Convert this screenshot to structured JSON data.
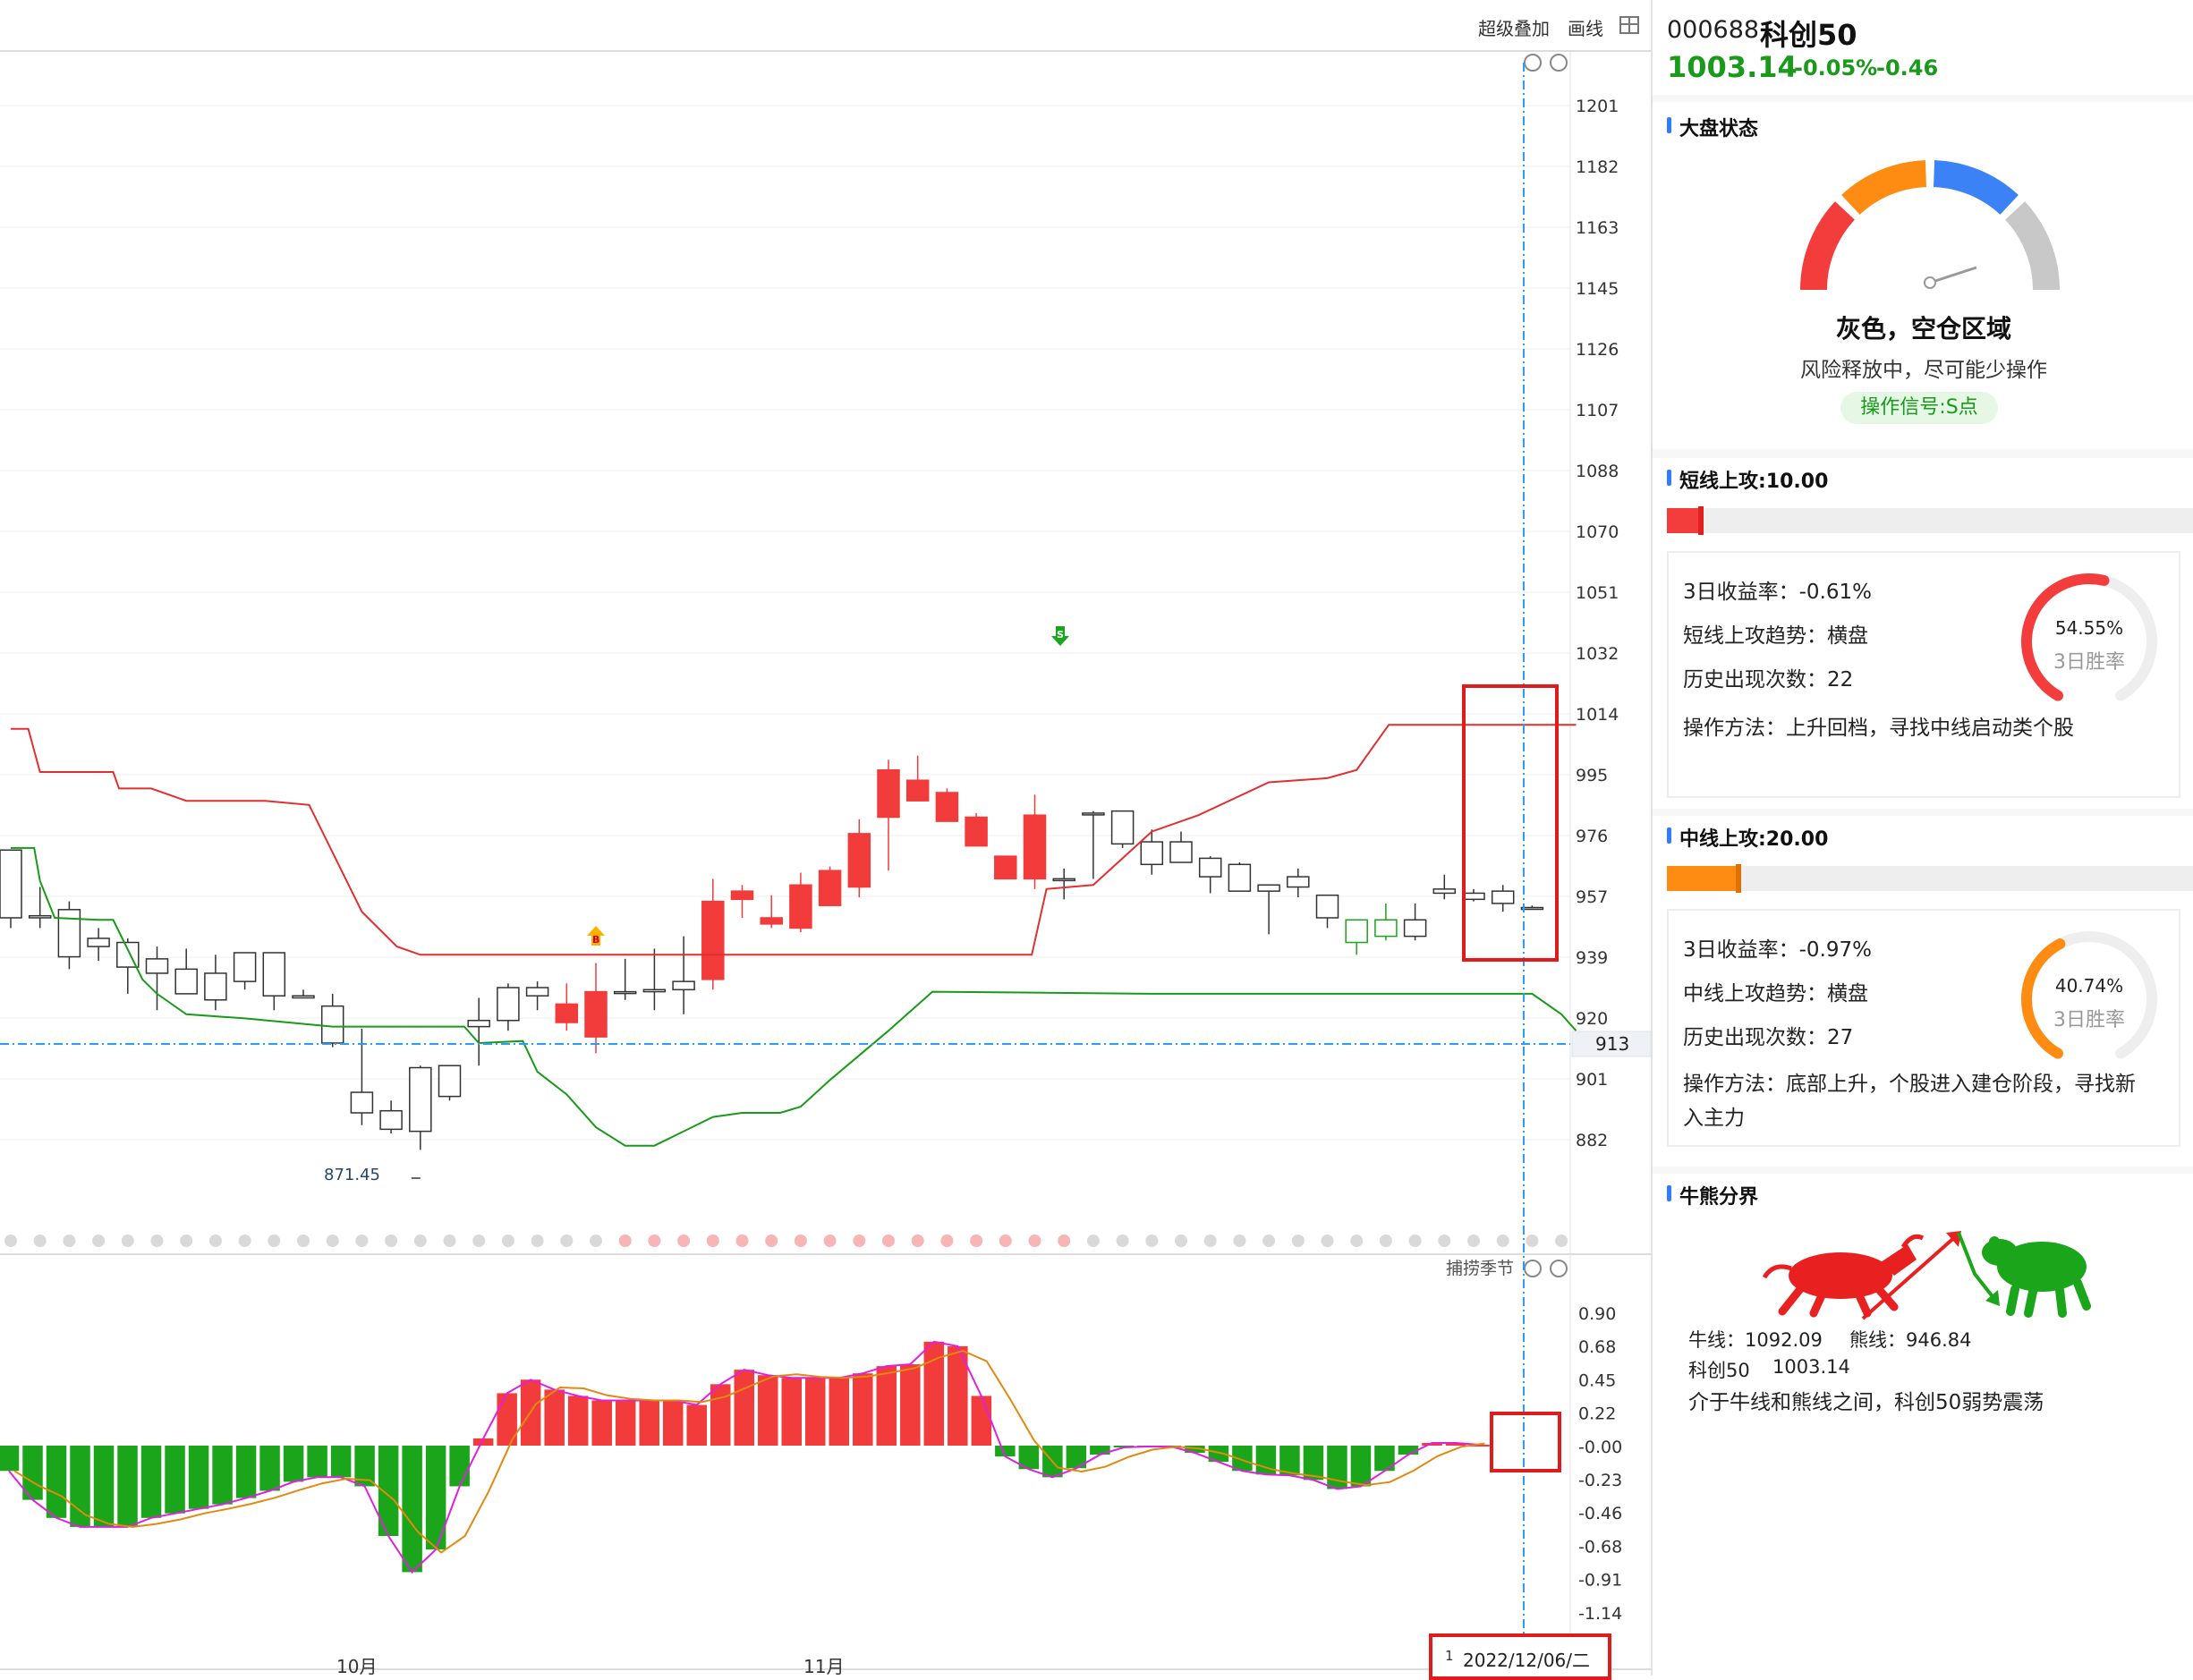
{
  "toolbar": {
    "overlay": "超级叠加",
    "draw": "画线"
  },
  "quote": {
    "code": "000688",
    "name": "科创50",
    "price": "1003.14",
    "change_pct": "-0.05%",
    "change": "-0.46"
  },
  "market_state": {
    "title": "大盘状态",
    "zone": "灰色，空仓区域",
    "advice": "风险释放中，尽可能少操作",
    "signal": "操作信号:S点",
    "gauge_colors": [
      "#f33c3c",
      "#ff8c12",
      "#3b82f6",
      "#c8c8c8"
    ]
  },
  "short_attack": {
    "title": "短线上攻:10.00",
    "bar_fraction": 0.07,
    "return_3d": "3日收益率：-0.61%",
    "trend": "短线上攻趋势：横盘",
    "count": "历史出现次数：22",
    "method": "操作方法：上升回档，寻找中线启动类个股",
    "win_rate": "54.55%",
    "win_rate_value": 54.55,
    "win_label": "3日胜率"
  },
  "mid_attack": {
    "title": "中线上攻:20.00",
    "bar_fraction": 0.14,
    "return_3d": "3日收益率：-0.97%",
    "trend": "中线上攻趋势：横盘",
    "count": "历史出现次数：27",
    "method_line1": "操作方法：底部上升，个股进入建仓阶段，寻找新",
    "method_line2": "入主力",
    "win_rate": "40.74%",
    "win_rate_value": 40.74,
    "win_label": "3日胜率"
  },
  "bull_bear": {
    "title": "牛熊分界",
    "bull_line": "牛线：1092.09",
    "bear_line": "熊线：946.84",
    "index_name": "科创50",
    "index_value": "1003.14",
    "comment": "介于牛线和熊线之间，科创50弱势震荡"
  },
  "chart": {
    "low_label": "871.45",
    "price_axis": [
      "1201",
      "1182",
      "1163",
      "1145",
      "1126",
      "1107",
      "1088",
      "1070",
      "1051",
      "1032",
      "1014",
      "995",
      "976",
      "957",
      "939",
      "920",
      "901",
      "882"
    ],
    "crosshair_price": "913",
    "osc_name": "捕捞季节",
    "osc_axis": [
      "0.90",
      "0.68",
      "0.45",
      "0.22",
      "-0.00",
      "-0.23",
      "-0.46",
      "-0.68",
      "-0.91",
      "-1.14"
    ],
    "date_labels": [
      "10月",
      "11月"
    ],
    "crosshair_date": "2022/12/06/二",
    "crosshair_date_prefix": "1",
    "b_marker": "B",
    "s_marker": "S",
    "colors": {
      "up": "#f23b3b",
      "down": "#1aa51a",
      "hollow": "#333333",
      "bull_line": "#e03030",
      "bear_line": "#1a9a1a",
      "crosshair": "#2a9df4",
      "highlight": "#e01b1b"
    }
  }
}
